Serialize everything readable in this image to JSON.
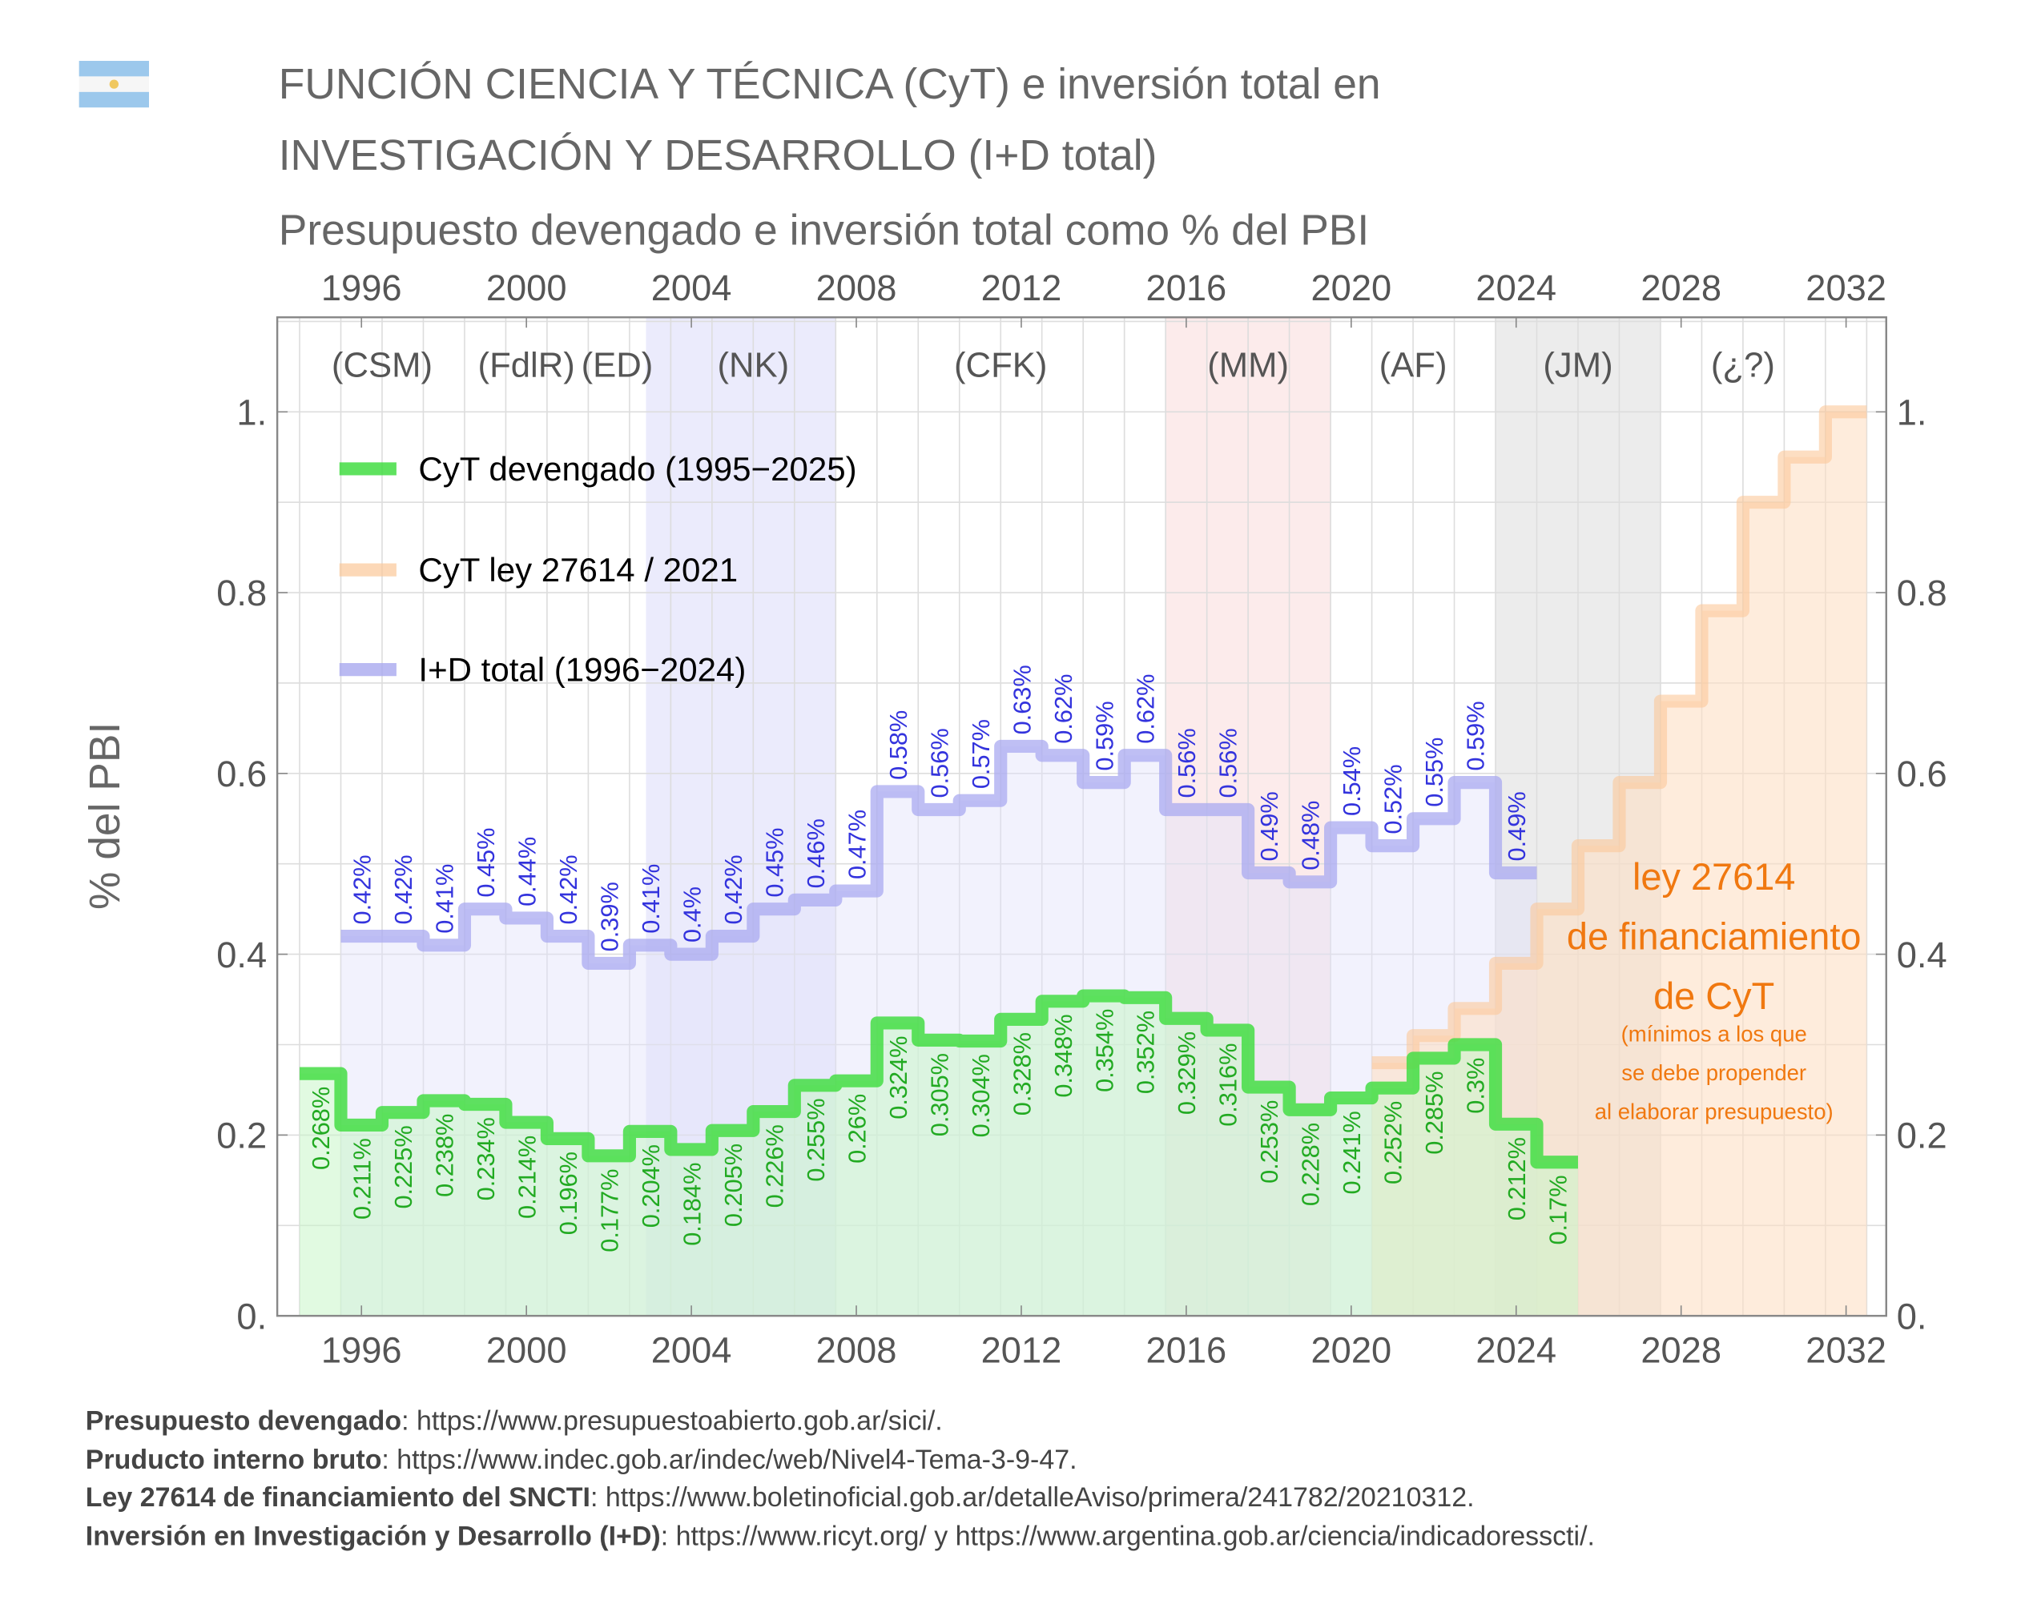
{
  "header": {
    "flag_icon": "argentina-flag-icon",
    "title_line1": "FUNCIÓN CIENCIA Y TÉCNICA (CyT) e inversión total en",
    "title_line2": "INVESTIGACIÓN Y DESARROLLO (I+D total)",
    "subtitle": "Presupuesto devengado e inversión total como % del PBI"
  },
  "chart_data": {
    "type": "line",
    "step": true,
    "ylabel": "% del PBI",
    "ylim": [
      0,
      1.1
    ],
    "xlim": [
      1994,
      2033.5
    ],
    "yticks": [
      0,
      0.2,
      0.4,
      0.6,
      0.8,
      1.0
    ],
    "ytick_labels": [
      "0.",
      "0.2",
      "0.4",
      "0.6",
      "0.8",
      "1."
    ],
    "xticks": [
      1996,
      2000,
      2004,
      2008,
      2012,
      2016,
      2020,
      2024,
      2028,
      2032
    ],
    "xtick_labels": [
      "1996",
      "2000",
      "2004",
      "2008",
      "2012",
      "2016",
      "2020",
      "2024",
      "2028",
      "2032"
    ],
    "grid": true,
    "legend_position": "top-left",
    "periods": [
      {
        "label": "(CSM)",
        "center": 1996.5,
        "shaded": false
      },
      {
        "label": "(FdlR)",
        "center": 2000,
        "shaded": false
      },
      {
        "label": "(ED)",
        "center": 2002.2,
        "shaded": false
      },
      {
        "label": "(NK)",
        "center": 2005.5,
        "start": 2002.9,
        "end": 2007.5,
        "shaded": true,
        "color": "#e4e4fb"
      },
      {
        "label": "(CFK)",
        "center": 2011.5,
        "shaded": false
      },
      {
        "label": "(MM)",
        "center": 2017.5,
        "start": 2015.5,
        "end": 2019.5,
        "shaded": true,
        "color": "#fbe4e4"
      },
      {
        "label": "(AF)",
        "center": 2021.5,
        "shaded": false
      },
      {
        "label": "(JM)",
        "center": 2025.5,
        "start": 2023.5,
        "end": 2027.5,
        "shaded": true,
        "color": "#e6e6e6"
      },
      {
        "label": "(¿?)",
        "center": 2029.5,
        "shaded": false
      }
    ],
    "series": [
      {
        "name": "CyT devengado (1995−2025)",
        "color": "#44dd44",
        "label_color": "#22aa22",
        "x": [
          1995,
          1996,
          1997,
          1998,
          1999,
          2000,
          2001,
          2002,
          2003,
          2004,
          2005,
          2006,
          2007,
          2008,
          2009,
          2010,
          2011,
          2012,
          2013,
          2014,
          2015,
          2016,
          2017,
          2018,
          2019,
          2020,
          2021,
          2022,
          2023,
          2024,
          2025
        ],
        "values": [
          0.268,
          0.211,
          0.225,
          0.238,
          0.234,
          0.214,
          0.196,
          0.177,
          0.204,
          0.184,
          0.205,
          0.226,
          0.255,
          0.26,
          0.324,
          0.305,
          0.304,
          0.328,
          0.348,
          0.354,
          0.352,
          0.329,
          0.316,
          0.253,
          0.228,
          0.241,
          0.252,
          0.285,
          0.3,
          0.212,
          0.17
        ],
        "labels": [
          "0.268%",
          "0.211%",
          "0.225%",
          "0.238%",
          "0.234%",
          "0.214%",
          "0.196%",
          "0.177%",
          "0.204%",
          "0.184%",
          "0.205%",
          "0.226%",
          "0.255%",
          "0.26%",
          "0.324%",
          "0.305%",
          "0.304%",
          "0.328%",
          "0.348%",
          "0.354%",
          "0.352%",
          "0.329%",
          "0.316%",
          "0.253%",
          "0.228%",
          "0.241%",
          "0.252%",
          "0.285%",
          "0.3%",
          "0.212%",
          "0.17%"
        ]
      },
      {
        "name": "CyT ley 27614 / 2021",
        "color": "#fbc89a",
        "x": [
          2021,
          2022,
          2023,
          2024,
          2025,
          2026,
          2027,
          2028,
          2029,
          2030,
          2031,
          2032
        ],
        "values": [
          0.28,
          0.31,
          0.34,
          0.39,
          0.45,
          0.52,
          0.59,
          0.68,
          0.78,
          0.9,
          0.95,
          1.0
        ]
      },
      {
        "name": "I+D total (1996−2024)",
        "color": "#aaaaf0",
        "label_color": "#3333dd",
        "x": [
          1996,
          1997,
          1998,
          1999,
          2000,
          2001,
          2002,
          2003,
          2004,
          2005,
          2006,
          2007,
          2008,
          2009,
          2010,
          2011,
          2012,
          2013,
          2014,
          2015,
          2016,
          2017,
          2018,
          2019,
          2020,
          2021,
          2022,
          2023,
          2024
        ],
        "values": [
          0.42,
          0.42,
          0.41,
          0.45,
          0.44,
          0.42,
          0.39,
          0.41,
          0.4,
          0.42,
          0.45,
          0.46,
          0.47,
          0.58,
          0.56,
          0.57,
          0.63,
          0.62,
          0.59,
          0.62,
          0.56,
          0.56,
          0.49,
          0.48,
          0.54,
          0.52,
          0.55,
          0.59,
          0.49
        ],
        "labels": [
          "0.42%",
          "0.42%",
          "0.41%",
          "0.45%",
          "0.44%",
          "0.42%",
          "0.39%",
          "0.41%",
          "0.4%",
          "0.42%",
          "0.45%",
          "0.46%",
          "0.47%",
          "0.58%",
          "0.56%",
          "0.57%",
          "0.63%",
          "0.62%",
          "0.59%",
          "0.62%",
          "0.56%",
          "0.56%",
          "0.49%",
          "0.48%",
          "0.54%",
          "0.52%",
          "0.55%",
          "0.59%",
          "0.49%"
        ]
      }
    ],
    "annotation": {
      "line1": "ley 27614",
      "line2": "de financiamiento",
      "line3": "de CyT",
      "note1": "(mínimos a los que",
      "note2": "se debe propender",
      "note3": "al elaborar presupuesto)",
      "color": "#f07810"
    }
  },
  "sources": [
    {
      "bold": "Presupuesto devengado",
      "text": ": https://www.presupuestoabierto.gob.ar/sici/."
    },
    {
      "bold": "Pruducto interno bruto",
      "text": ": https://www.indec.gob.ar/indec/web/Nivel4-Tema-3-9-47."
    },
    {
      "bold": "Ley 27614 de financiamiento del SNCTI",
      "text": ": https://www.boletinoficial.gob.ar/detalleAviso/primera/241782/20210312."
    },
    {
      "bold": "Inversión en Investigación y Desarrollo (I+D)",
      "text": ": https://www.ricyt.org/ y https://www.argentina.gob.ar/ciencia/indicadoresscti/."
    }
  ]
}
